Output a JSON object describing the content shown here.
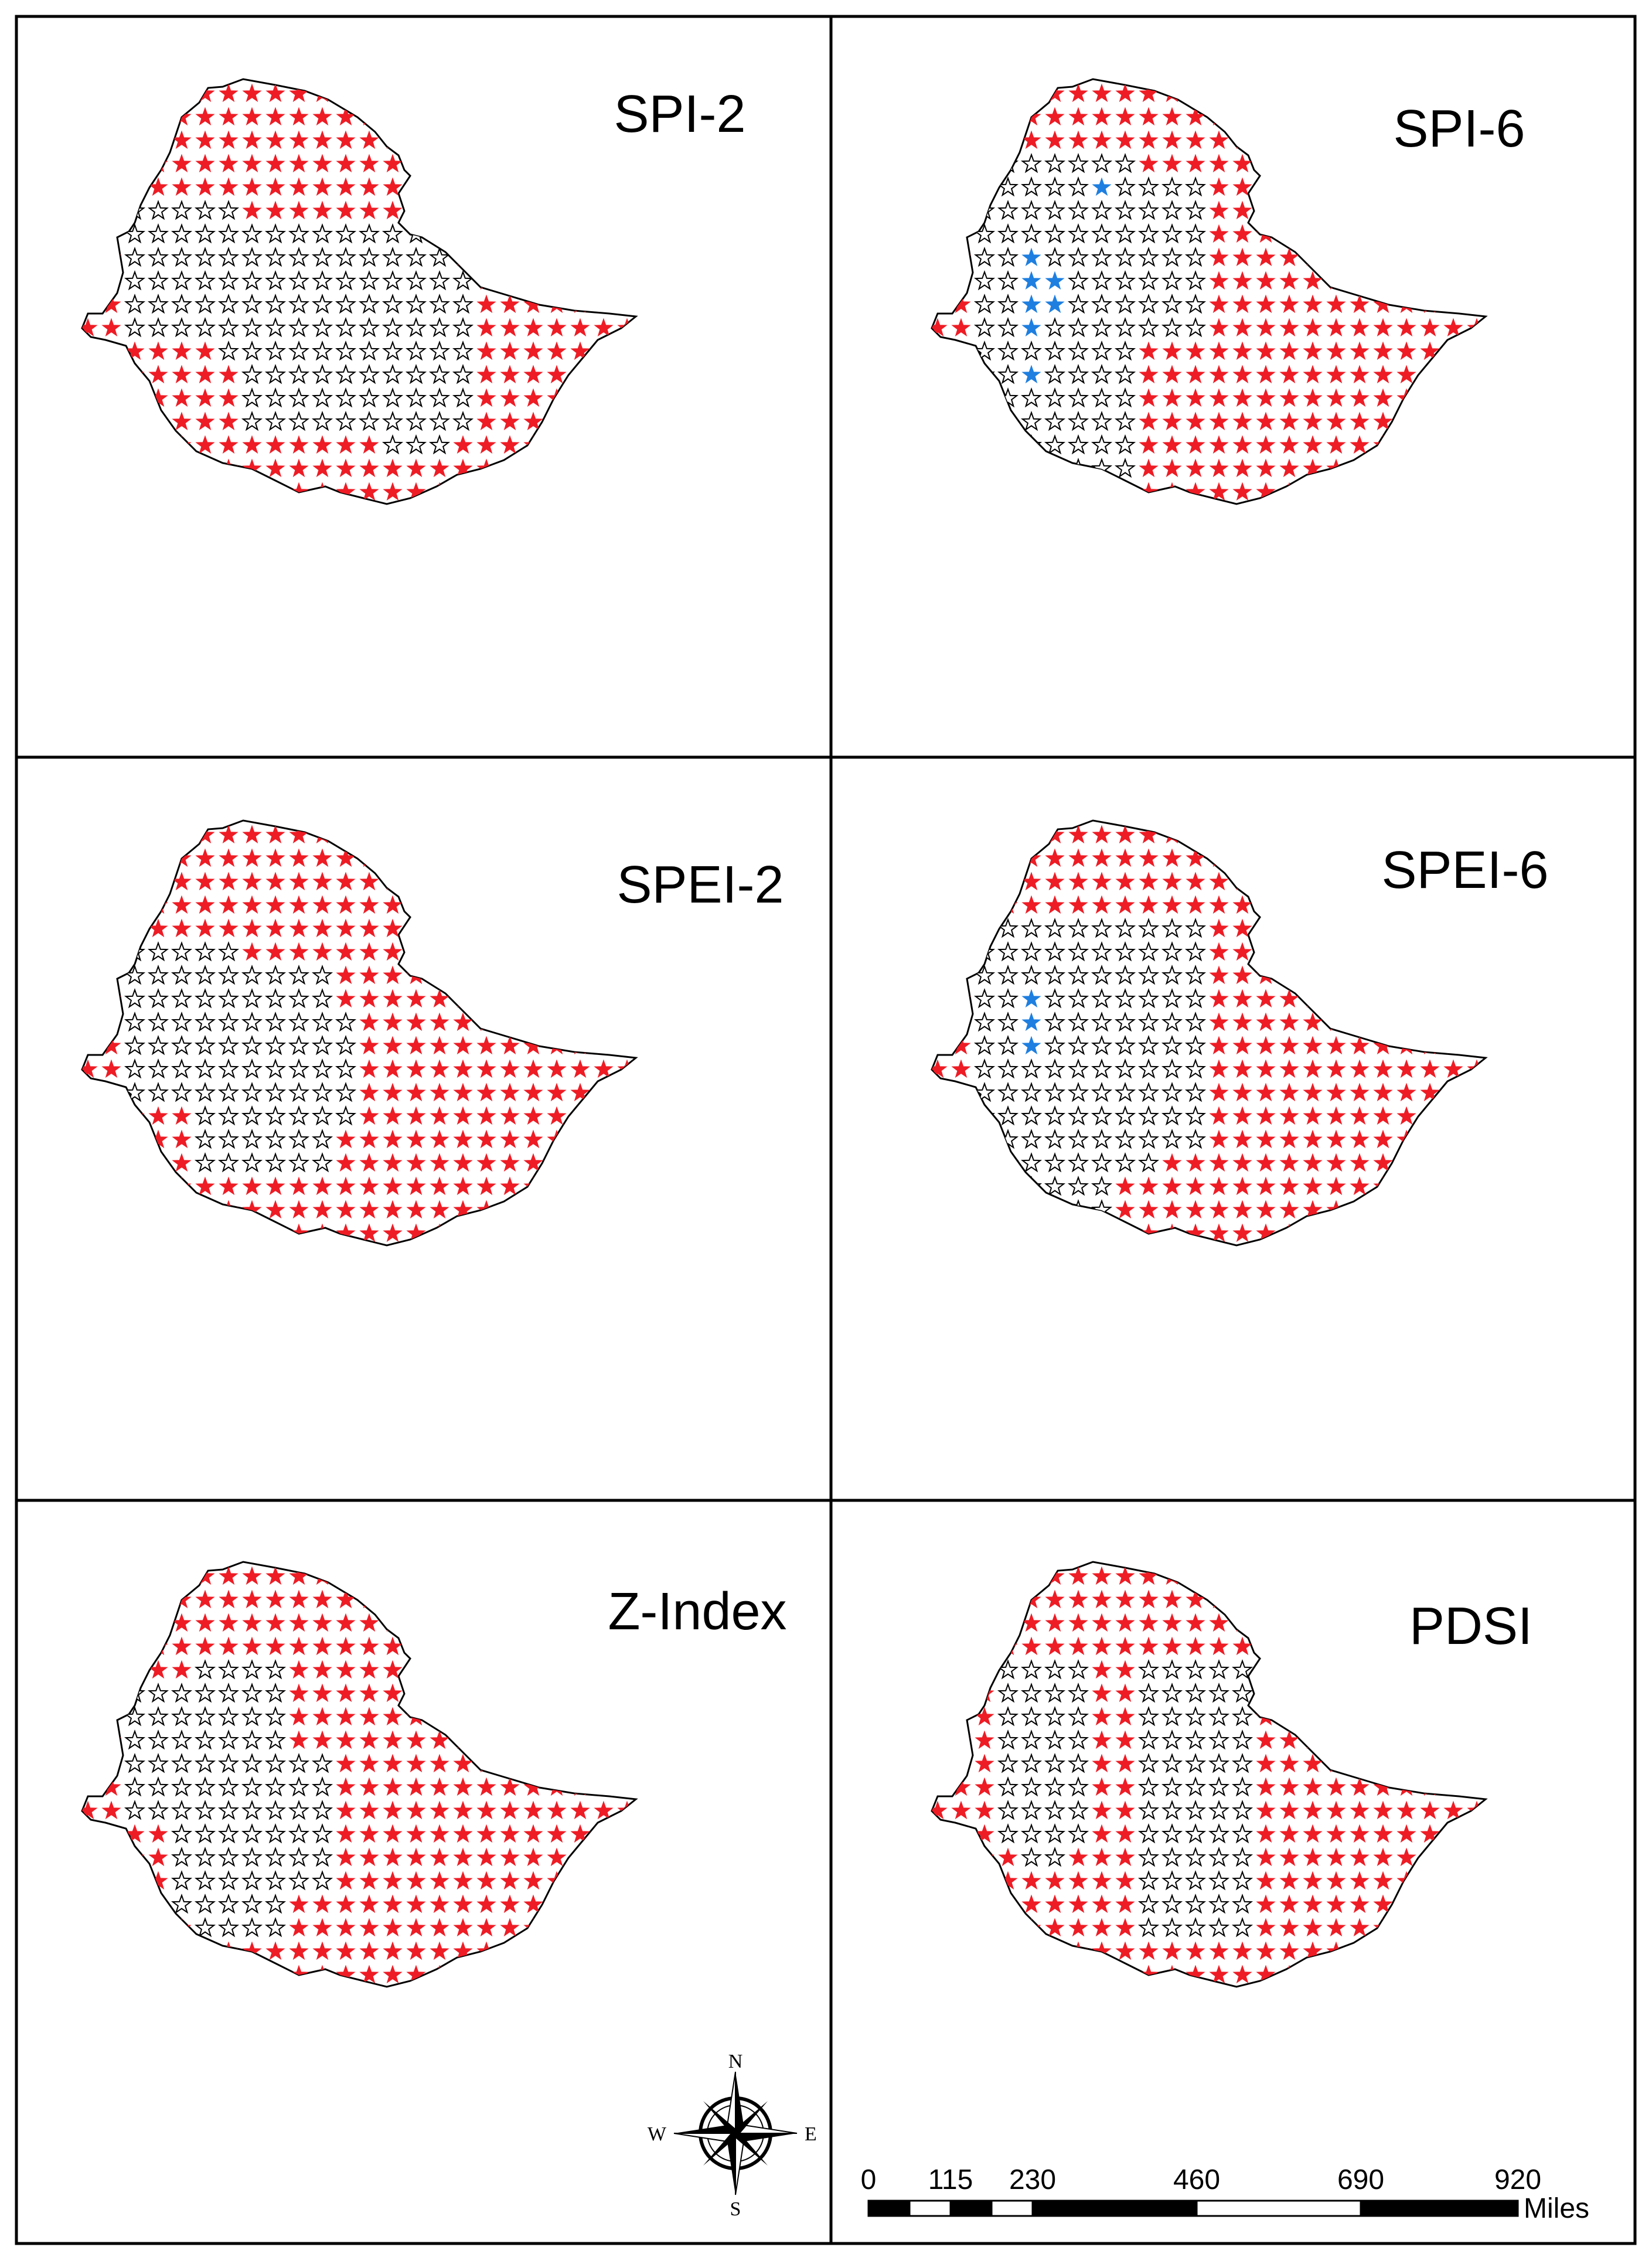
{
  "panels": [
    {
      "id": "spi2",
      "title": "SPI-2"
    },
    {
      "id": "spi6",
      "title": "SPI-6"
    },
    {
      "id": "spei2",
      "title": "SPEI-2"
    },
    {
      "id": "spei6",
      "title": "SPEI-6"
    },
    {
      "id": "zindex",
      "title": "Z-Index"
    },
    {
      "id": "pdsi",
      "title": "PDSI"
    }
  ],
  "star_colors": {
    "red": "#ee1c25",
    "blue": "#1e7fe0",
    "white": "#ffffff",
    "outline": "#000000"
  },
  "compass": {
    "n": "N",
    "s": "S",
    "e": "E",
    "w": "W"
  },
  "scale_bar": {
    "ticks": [
      "0",
      "115",
      "230",
      "460",
      "690",
      "920"
    ],
    "unit": "Miles"
  }
}
